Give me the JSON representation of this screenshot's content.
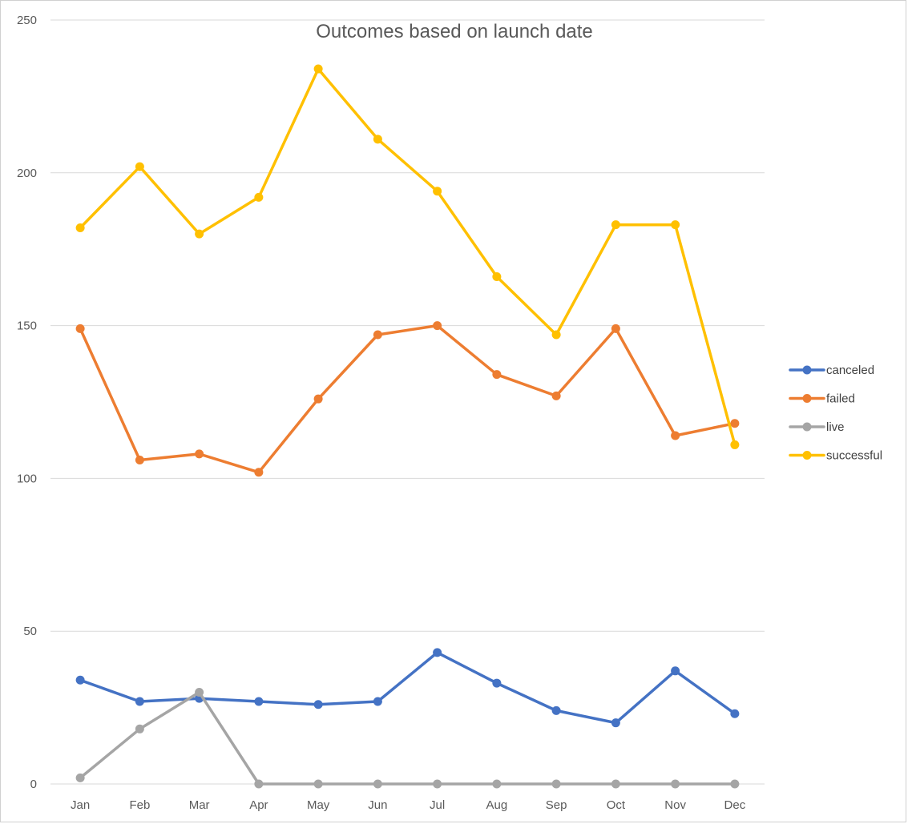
{
  "chart_data": {
    "type": "line",
    "title": "Outcomes based on launch date",
    "xlabel": "",
    "ylabel": "",
    "categories": [
      "Jan",
      "Feb",
      "Mar",
      "Apr",
      "May",
      "Jun",
      "Jul",
      "Aug",
      "Sep",
      "Oct",
      "Nov",
      "Dec"
    ],
    "ylim": [
      0,
      250
    ],
    "yticks": [
      0,
      50,
      100,
      150,
      200,
      250
    ],
    "grid": true,
    "legend_position": "right",
    "series": [
      {
        "name": "canceled",
        "color": "#4472C4",
        "values": [
          34,
          27,
          28,
          27,
          26,
          27,
          43,
          33,
          24,
          20,
          37,
          23
        ]
      },
      {
        "name": "failed",
        "color": "#ED7D31",
        "values": [
          149,
          106,
          108,
          102,
          126,
          147,
          150,
          134,
          127,
          149,
          114,
          118
        ]
      },
      {
        "name": "live",
        "color": "#A5A5A5",
        "values": [
          2,
          18,
          30,
          0,
          0,
          0,
          0,
          0,
          0,
          0,
          0,
          0
        ]
      },
      {
        "name": "successful",
        "color": "#FFC000",
        "values": [
          182,
          202,
          180,
          192,
          234,
          211,
          194,
          166,
          147,
          183,
          183,
          111
        ]
      }
    ]
  }
}
